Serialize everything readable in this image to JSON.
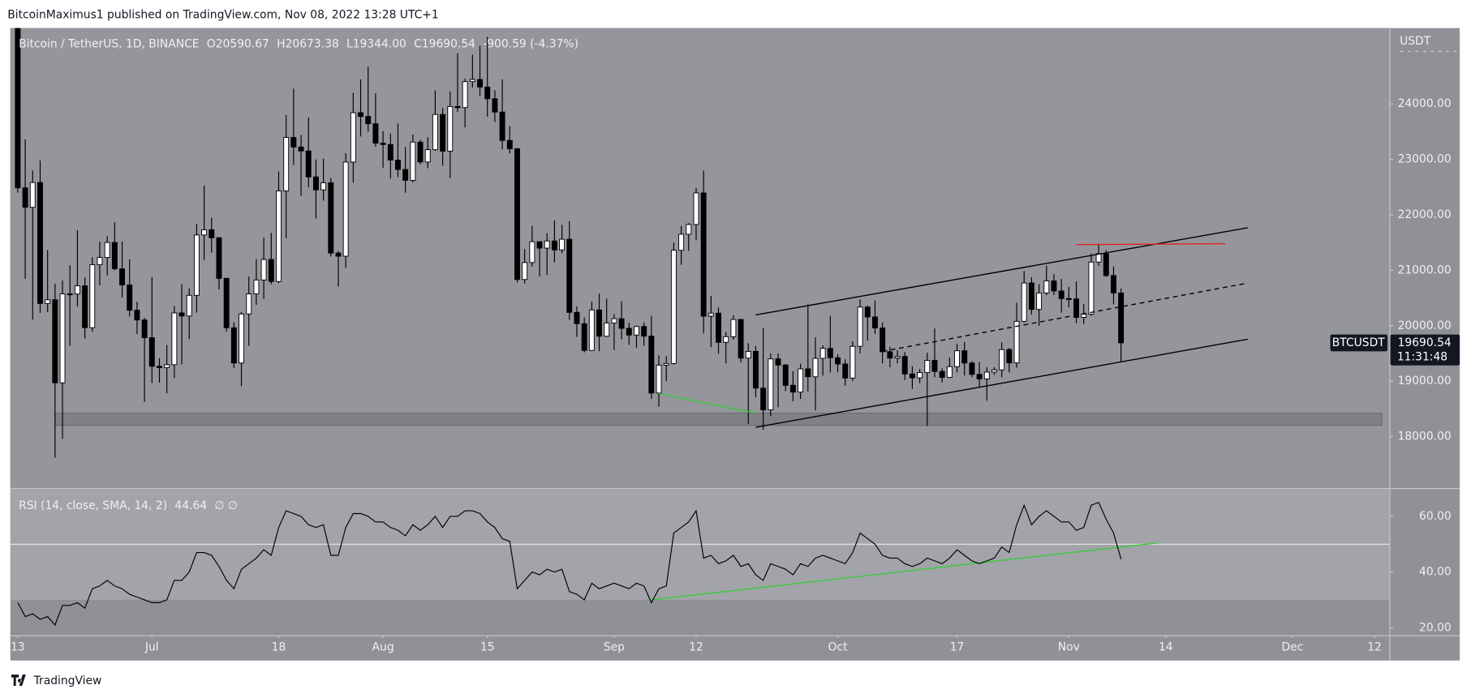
{
  "header": "BitcoinMaximus1 published on TradingView.com, Nov 08, 2022 13:28 UTC+1",
  "footer": "TradingView",
  "chart_data": {
    "type": "candlestick",
    "title": "Bitcoin / TetherUS, 1D, BINANCE",
    "legend": [
      {
        "key": "O",
        "value": "20590.67"
      },
      {
        "key": "H",
        "value": "20673.38"
      },
      {
        "key": "L",
        "value": "19344.00"
      },
      {
        "key": "C",
        "value": "19690.54"
      }
    ],
    "change": "-900.59 (-4.37%)",
    "axis_label": "USDT",
    "last_price": {
      "symbol": "BTCUSDT",
      "price": "19690.54",
      "countdown": "11:31:48"
    },
    "up_color": "#ffffff",
    "down_color": "#000000",
    "x": [
      "2022-06-13",
      "2022-06-14",
      "2022-06-15",
      "2022-06-16",
      "2022-06-17",
      "2022-06-18",
      "2022-06-19",
      "2022-06-20",
      "2022-06-21",
      "2022-06-22",
      "2022-06-23",
      "2022-06-24",
      "2022-06-25",
      "2022-06-26",
      "2022-06-27",
      "2022-06-28",
      "2022-06-29",
      "2022-06-30",
      "2022-07-01",
      "2022-07-02",
      "2022-07-03",
      "2022-07-04",
      "2022-07-05",
      "2022-07-06",
      "2022-07-07",
      "2022-07-08",
      "2022-07-09",
      "2022-07-10",
      "2022-07-11",
      "2022-07-12",
      "2022-07-13",
      "2022-07-14",
      "2022-07-15",
      "2022-07-16",
      "2022-07-17",
      "2022-07-18",
      "2022-07-19",
      "2022-07-20",
      "2022-07-21",
      "2022-07-22",
      "2022-07-23",
      "2022-07-24",
      "2022-07-25",
      "2022-07-26",
      "2022-07-27",
      "2022-07-28",
      "2022-07-29",
      "2022-07-30",
      "2022-07-31",
      "2022-08-01",
      "2022-08-02",
      "2022-08-03",
      "2022-08-04",
      "2022-08-05",
      "2022-08-06",
      "2022-08-07",
      "2022-08-08",
      "2022-08-09",
      "2022-08-10",
      "2022-08-11",
      "2022-08-12",
      "2022-08-13",
      "2022-08-14",
      "2022-08-15",
      "2022-08-16",
      "2022-08-17",
      "2022-08-18",
      "2022-08-19",
      "2022-08-20",
      "2022-08-21",
      "2022-08-22",
      "2022-08-23",
      "2022-08-24",
      "2022-08-25",
      "2022-08-26",
      "2022-08-27",
      "2022-08-28",
      "2022-08-29",
      "2022-08-30",
      "2022-08-31",
      "2022-09-01",
      "2022-09-02",
      "2022-09-03",
      "2022-09-04",
      "2022-09-05",
      "2022-09-06",
      "2022-09-07",
      "2022-09-08",
      "2022-09-09",
      "2022-09-10",
      "2022-09-11",
      "2022-09-12",
      "2022-09-13",
      "2022-09-14",
      "2022-09-15",
      "2022-09-16",
      "2022-09-17",
      "2022-09-18",
      "2022-09-19",
      "2022-09-20",
      "2022-09-21",
      "2022-09-22",
      "2022-09-23",
      "2022-09-24",
      "2022-09-25",
      "2022-09-26",
      "2022-09-27",
      "2022-09-28",
      "2022-09-29",
      "2022-09-30",
      "2022-10-01",
      "2022-10-02",
      "2022-10-03",
      "2022-10-04",
      "2022-10-05",
      "2022-10-06",
      "2022-10-07",
      "2022-10-08",
      "2022-10-09",
      "2022-10-10",
      "2022-10-11",
      "2022-10-12",
      "2022-10-13",
      "2022-10-14",
      "2022-10-15",
      "2022-10-16",
      "2022-10-17",
      "2022-10-18",
      "2022-10-19",
      "2022-10-20",
      "2022-10-21",
      "2022-10-22",
      "2022-10-23",
      "2022-10-24",
      "2022-10-25",
      "2022-10-26",
      "2022-10-27",
      "2022-10-28",
      "2022-10-29",
      "2022-10-30",
      "2022-10-31",
      "2022-11-01",
      "2022-11-02",
      "2022-11-03",
      "2022-11-04",
      "2022-11-05",
      "2022-11-06",
      "2022-11-07",
      "2022-11-08"
    ],
    "open": [
      26574,
      22487,
      22136,
      22583,
      20401,
      20468,
      18970,
      20574,
      20573,
      20720,
      19965,
      21100,
      21231,
      21502,
      21027,
      20735,
      20280,
      20104,
      19784,
      19269,
      19243,
      19297,
      20231,
      20175,
      20548,
      21637,
      21731,
      21587,
      20854,
      19963,
      19328,
      20212,
      20574,
      20825,
      21195,
      20798,
      22432,
      23396,
      23223,
      23152,
      22684,
      22451,
      22579,
      21310,
      21254,
      22952,
      23843,
      23774,
      23643,
      23293,
      23268,
      22987,
      22818,
      22622,
      23312,
      22954,
      23175,
      23810,
      23149,
      23954,
      23934,
      24403,
      24441,
      24305,
      24094,
      23854,
      23342,
      23191,
      20834,
      21140,
      21516,
      21400,
      21529,
      21368,
      21560,
      20241,
      20037,
      19555,
      20285,
      19811,
      20050,
      20127,
      19953,
      19832,
      19986,
      19813,
      18786,
      19289,
      19320,
      21361,
      21650,
      21826,
      22395,
      20173,
      20227,
      19701,
      19803,
      20113,
      19416,
      19537,
      18875,
      18483,
      19402,
      19291,
      18925,
      18803,
      19222,
      19079,
      19412,
      19591,
      19423,
      19310,
      19056,
      19629,
      20337,
      20158,
      19960,
      19531,
      19417,
      19446,
      19131,
      19060,
      19155,
      19375,
      19176,
      19069,
      19262,
      19549,
      19327,
      19123,
      19041,
      19164,
      19204,
      19570,
      19330,
      20080,
      20771,
      20295,
      20591,
      20809,
      20627,
      20490,
      20483,
      20151,
      20207,
      21148,
      21299,
      20905,
      20590.67
    ],
    "high": [
      26880,
      23362,
      22800,
      22980,
      21365,
      20758,
      20815,
      21090,
      21723,
      20868,
      21233,
      21520,
      21614,
      21868,
      21520,
      21200,
      20432,
      20142,
      20876,
      19416,
      19650,
      20354,
      20750,
      20675,
      21838,
      22527,
      21950,
      21600,
      20868,
      20060,
      20250,
      20885,
      21200,
      21588,
      21675,
      22780,
      23800,
      24276,
      23442,
      23756,
      22998,
      23014,
      22666,
      21347,
      23112,
      24199,
      24442,
      24668,
      24194,
      23509,
      23466,
      23647,
      23226,
      23449,
      23354,
      23400,
      24245,
      23926,
      24226,
      24918,
      24456,
      24888,
      25047,
      25212,
      24247,
      24446,
      23600,
      23208,
      21382,
      21800,
      21522,
      21669,
      21900,
      21819,
      21886,
      20350,
      20150,
      20433,
      20580,
      20490,
      20209,
      20444,
      20055,
      20000,
      20058,
      20180,
      19464,
      19450,
      21500,
      21800,
      21850,
      22488,
      22800,
      20540,
      20330,
      19888,
      20189,
      20117,
      19686,
      19634,
      19956,
      19500,
      19500,
      19310,
      19181,
      19316,
      20385,
      19790,
      19645,
      20180,
      19486,
      19395,
      19719,
      20475,
      20365,
      20456,
      20060,
      19620,
      19559,
      19525,
      19270,
      19220,
      19513,
      19951,
      19230,
      19424,
      19676,
      19706,
      19360,
      19346,
      19250,
      19250,
      19700,
      19601,
      20416,
      20988,
      20876,
      20750,
      21085,
      20931,
      20845,
      20700,
      20800,
      20393,
      21302,
      21480,
      21365,
      21069,
      20673.38
    ],
    "low": [
      22400,
      20846,
      20111,
      20232,
      20246,
      17622,
      17960,
      19637,
      20348,
      19770,
      19893,
      20730,
      20906,
      21000,
      20510,
      20165,
      19850,
      18626,
      18966,
      18975,
      18781,
      19055,
      19304,
      19761,
      20237,
      21186,
      21316,
      20655,
      19896,
      19235,
      18910,
      19638,
      20376,
      20482,
      20750,
      20770,
      21581,
      22900,
      22341,
      22500,
      21934,
      22257,
      21250,
      20706,
      21042,
      22582,
      23414,
      23502,
      23227,
      22850,
      22654,
      22681,
      22400,
      22586,
      22910,
      22841,
      23154,
      22885,
      22664,
      23852,
      23576,
      24296,
      24144,
      23773,
      23671,
      23180,
      23108,
      20783,
      20761,
      21069,
      20890,
      20913,
      21145,
      21310,
      20107,
      19800,
      19520,
      19550,
      19540,
      19800,
      19565,
      19754,
      19655,
      19600,
      19636,
      18680,
      18540,
      19000,
      19300,
      21100,
      21350,
      21540,
      19860,
      19617,
      19497,
      19320,
      19748,
      19335,
      18232,
      18711,
      18125,
      18370,
      18531,
      18821,
      18638,
      18680,
      18816,
      18471,
      19101,
      19156,
      19160,
      18920,
      19000,
      19500,
      19730,
      19854,
      19320,
      19250,
      19320,
      19020,
      18860,
      18965,
      18190,
      19070,
      18975,
      19063,
      19160,
      19101,
      19070,
      18900,
      18650,
      19113,
      19070,
      19157,
      19242,
      20061,
      20202,
      20000,
      20550,
      20553,
      20237,
      20330,
      20048,
      20031,
      20180,
      21080,
      20878,
      20386,
      19344
    ],
    "close": [
      22487,
      22136,
      22583,
      20401,
      20468,
      18970,
      20574,
      20573,
      20720,
      19965,
      21100,
      21231,
      21502,
      21027,
      20735,
      20280,
      20104,
      19784,
      19269,
      19243,
      19297,
      20231,
      20175,
      20548,
      21637,
      21731,
      21587,
      20854,
      19963,
      19328,
      20212,
      20574,
      20825,
      21195,
      20798,
      22432,
      23396,
      23223,
      23152,
      22684,
      22451,
      22579,
      21310,
      21254,
      22952,
      23843,
      23774,
      23643,
      23293,
      23268,
      22987,
      22818,
      22622,
      23312,
      22954,
      23175,
      23810,
      23149,
      23954,
      23934,
      24403,
      24441,
      24305,
      24094,
      23854,
      23342,
      23191,
      20834,
      21140,
      21516,
      21400,
      21529,
      21368,
      21560,
      20241,
      20037,
      19555,
      20285,
      19811,
      20050,
      20127,
      19953,
      19832,
      19986,
      19813,
      18786,
      19289,
      19320,
      21361,
      21650,
      21826,
      22395,
      20173,
      20227,
      19701,
      19803,
      20113,
      19416,
      19537,
      18875,
      18483,
      19402,
      19291,
      18925,
      18803,
      19222,
      19079,
      19412,
      19591,
      19423,
      19310,
      19056,
      19629,
      20337,
      20158,
      19960,
      19531,
      19417,
      19446,
      19131,
      19060,
      19155,
      19375,
      19176,
      19069,
      19262,
      19549,
      19327,
      19123,
      19041,
      19164,
      19204,
      19570,
      19330,
      20080,
      20771,
      20295,
      20591,
      20809,
      20627,
      20490,
      20483,
      20151,
      20207,
      21148,
      21299,
      20905,
      20590.67,
      19690.54
    ],
    "xlim": [
      "2022-06-12",
      "2022-12-14"
    ],
    "xticks": [
      {
        "value": "2022-06-13",
        "label": "13"
      },
      {
        "value": "2022-07-01",
        "label": "Jul"
      },
      {
        "value": "2022-07-18",
        "label": "18"
      },
      {
        "value": "2022-08-01",
        "label": "Aug"
      },
      {
        "value": "2022-08-15",
        "label": "15"
      },
      {
        "value": "2022-09-01",
        "label": "Sep"
      },
      {
        "value": "2022-09-12",
        "label": "12"
      },
      {
        "value": "2022-10-01",
        "label": "Oct"
      },
      {
        "value": "2022-10-17",
        "label": "17"
      },
      {
        "value": "2022-11-01",
        "label": "Nov"
      },
      {
        "value": "2022-11-14",
        "label": "14"
      },
      {
        "value": "2022-12-01",
        "label": "Dec"
      },
      {
        "value": "2022-12-12",
        "label": "12"
      }
    ],
    "ylim": [
      17071,
      25368
    ],
    "yticks": [
      {
        "value": 18000,
        "label": "18000.00"
      },
      {
        "value": 19000,
        "label": "19000.00"
      },
      {
        "value": 20000,
        "label": "20000.00"
      },
      {
        "value": 21000,
        "label": "21000.00"
      },
      {
        "value": 22000,
        "label": "22000.00"
      },
      {
        "value": 23000,
        "label": "23000.00"
      },
      {
        "value": 24000,
        "label": "24000.00"
      }
    ],
    "zone": {
      "from": "2022-06-18",
      "to": "2022-12-13",
      "low": 18203,
      "high": 18422,
      "color": "#7f8187"
    },
    "drawings": [
      {
        "points": [
          [
            "2022-09-20",
            18169
          ],
          [
            "2022-11-25",
            19757
          ]
        ],
        "color": "#000000",
        "dashed": false
      },
      {
        "points": [
          [
            "2022-09-20",
            20196
          ],
          [
            "2022-11-25",
            21767
          ]
        ],
        "color": "#000000",
        "dashed": false
      },
      {
        "points": [
          [
            "2022-10-07",
            19537
          ],
          [
            "2022-11-25",
            20770
          ]
        ],
        "color": "#000000",
        "dashed": true
      },
      {
        "points": [
          [
            "2022-11-02",
            21463
          ],
          [
            "2022-11-22",
            21480
          ]
        ],
        "color": "#e02020",
        "dashed": false
      },
      {
        "points": [
          [
            "2022-09-07",
            18777
          ],
          [
            "2022-09-20",
            18422
          ]
        ],
        "color": "#3cc83c",
        "dashed": false
      }
    ],
    "indicator": {
      "type": "line",
      "title": "RSI (14, close, SMA, 14, 2)",
      "value_label": "44.64",
      "flags": "∅ ∅",
      "color": "#000000",
      "values": [
        29,
        24,
        25,
        23,
        24,
        21,
        28,
        28,
        29,
        27,
        34,
        35,
        37,
        35,
        34,
        32,
        31,
        30,
        29,
        29,
        30,
        37,
        37,
        40,
        47,
        47,
        46,
        42,
        37,
        34,
        41,
        43,
        45,
        48,
        46,
        56,
        62,
        61,
        60,
        57,
        56,
        57,
        46,
        46,
        56,
        61,
        61,
        60,
        58,
        58,
        56,
        55,
        53,
        57,
        55,
        57,
        60,
        56,
        60,
        60,
        62,
        62,
        61,
        58,
        56,
        52,
        51,
        34,
        37,
        40,
        39,
        41,
        40,
        41,
        33,
        32,
        30,
        36,
        34,
        35,
        36,
        35,
        34,
        36,
        35,
        29,
        34,
        35,
        54,
        56,
        58,
        62,
        45,
        46,
        43,
        44,
        46,
        42,
        43,
        39,
        37,
        43,
        42,
        41,
        39,
        43,
        42,
        45,
        46,
        45,
        44,
        43,
        47,
        54,
        52,
        50,
        46,
        45,
        45,
        43,
        42,
        43,
        45,
        44,
        43,
        45,
        48,
        46,
        44,
        43,
        44,
        45,
        49,
        47,
        57,
        64,
        57,
        60,
        62,
        60,
        58,
        58,
        55,
        56,
        64,
        65,
        59,
        54,
        44.64
      ],
      "ylim": [
        17.3,
        69.8
      ],
      "yticks": [
        {
          "value": 20,
          "label": "20.00"
        },
        {
          "value": 40,
          "label": "40.00"
        },
        {
          "value": 60,
          "label": "60.00"
        }
      ],
      "band": [
        30,
        70
      ],
      "band_color": "#a2a4aa",
      "midline": 50,
      "drawings": [
        {
          "points": [
            [
              "2022-09-06",
              30
            ],
            [
              "2022-11-13",
              50.5
            ]
          ],
          "color": "#3cc83c",
          "dashed": false
        }
      ]
    }
  }
}
